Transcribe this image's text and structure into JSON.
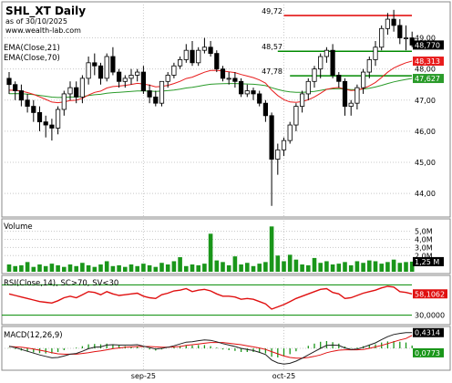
{
  "header": {
    "title": "SHL_XT Daily",
    "asof": "as of 30/10/2025",
    "website": "www.wealth-lab.com",
    "ema21_label": "EMA(Close,21)",
    "ema70_label": "EMA(Close,70)"
  },
  "colors": {
    "up_candle": "#ffffff",
    "down_candle": "#000000",
    "ema21": "#e81d1d",
    "ema70": "#2a9b2a",
    "resistance": "#e00000",
    "support": "#008a00",
    "volume": "#1a961a",
    "rsi": "#e01010",
    "macd_line": "#202020",
    "macd_signal": "#e01010",
    "macd_hist": "#1a961a",
    "grid": "#c8c8c8"
  },
  "chart_data": [
    {
      "type": "candlestick",
      "panel": "price",
      "ylim": [
        43.3,
        50.1
      ],
      "yticks": [
        "49,00",
        "48,00",
        "47,00",
        "46,00",
        "45,00",
        "44,00"
      ],
      "xtick_labels": [
        "sep-25",
        "oct-25"
      ],
      "xtick_index": [
        22,
        45
      ],
      "levels": [
        {
          "label": "49,72",
          "value": 49.72,
          "kind": "resistance"
        },
        {
          "label": "48,57",
          "value": 48.57,
          "kind": "support"
        },
        {
          "label": "47,78",
          "value": 47.78,
          "kind": "support"
        }
      ],
      "last_price_label": "48,770",
      "ema21_last_label": "48,313",
      "ema70_last_label": "47,627",
      "open": [
        47.7,
        47.5,
        47.3,
        47.0,
        46.8,
        46.6,
        46.3,
        46.2,
        46.1,
        46.7,
        47.2,
        47.4,
        47.1,
        47.7,
        48.2,
        48.1,
        47.7,
        48.4,
        47.9,
        47.6,
        47.7,
        47.8,
        47.9,
        47.3,
        47.1,
        46.9,
        47.6,
        47.8,
        48.1,
        48.3,
        48.6,
        48.2,
        48.6,
        48.7,
        48.5,
        48.0,
        47.7,
        47.7,
        47.6,
        47.2,
        47.3,
        47.2,
        46.9,
        46.5,
        45.1,
        45.4,
        45.7,
        46.2,
        46.8,
        47.2,
        47.6,
        48.0,
        48.4,
        48.6,
        47.8,
        47.6,
        46.8,
        46.9,
        47.4,
        47.9,
        48.3,
        48.7,
        49.3,
        49.6,
        49.4,
        49.0,
        49.0
      ],
      "high": [
        47.9,
        47.6,
        47.5,
        47.2,
        47.0,
        46.8,
        46.5,
        46.4,
        46.8,
        47.3,
        47.6,
        47.6,
        47.8,
        48.4,
        48.5,
        48.2,
        48.5,
        48.7,
        48.0,
        47.8,
        48.0,
        48.0,
        48.1,
        47.5,
        47.3,
        47.6,
        47.9,
        48.2,
        48.4,
        48.8,
        48.9,
        48.7,
        49.0,
        48.9,
        48.6,
        48.1,
        47.9,
        47.9,
        47.7,
        47.5,
        47.4,
        47.3,
        47.0,
        46.6,
        45.6,
        45.8,
        46.3,
        46.9,
        47.3,
        47.7,
        48.1,
        48.5,
        48.7,
        48.8,
        47.9,
        47.7,
        47.0,
        47.5,
        48.0,
        48.4,
        48.9,
        49.4,
        49.8,
        49.9,
        49.6,
        49.4,
        49.2
      ],
      "low": [
        47.2,
        47.0,
        46.8,
        46.6,
        46.3,
        46.0,
        45.8,
        45.7,
        45.9,
        46.5,
        47.0,
        46.9,
        46.9,
        47.5,
        47.8,
        47.5,
        47.6,
        47.8,
        47.4,
        47.4,
        47.5,
        47.6,
        47.2,
        46.9,
        46.8,
        46.8,
        47.4,
        47.7,
        48.0,
        48.2,
        48.1,
        48.1,
        48.5,
        48.4,
        47.9,
        47.6,
        47.5,
        47.4,
        47.1,
        47.1,
        47.0,
        46.8,
        46.3,
        43.6,
        44.6,
        45.2,
        45.6,
        46.0,
        46.6,
        47.0,
        47.4,
        47.7,
        48.2,
        47.7,
        47.4,
        46.5,
        46.5,
        46.7,
        47.2,
        47.7,
        48.1,
        48.6,
        49.1,
        49.2,
        48.8,
        48.6,
        48.7
      ],
      "close": [
        47.5,
        47.3,
        47.0,
        46.8,
        46.6,
        46.3,
        46.2,
        46.1,
        46.7,
        47.2,
        47.4,
        47.1,
        47.7,
        48.2,
        48.1,
        47.7,
        48.4,
        47.9,
        47.6,
        47.7,
        47.8,
        47.9,
        47.3,
        47.1,
        46.9,
        47.6,
        47.8,
        48.1,
        48.3,
        48.6,
        48.2,
        48.6,
        48.7,
        48.5,
        48.0,
        47.7,
        47.7,
        47.6,
        47.2,
        47.3,
        47.2,
        46.9,
        46.5,
        45.1,
        45.4,
        45.7,
        46.2,
        46.8,
        47.2,
        47.6,
        48.0,
        48.4,
        48.6,
        47.8,
        47.6,
        46.8,
        46.9,
        47.4,
        47.9,
        48.3,
        48.7,
        49.3,
        49.6,
        49.4,
        49.0,
        49.0,
        48.77
      ]
    },
    {
      "type": "bar",
      "panel": "volume",
      "title": "Volume",
      "ylim": [
        0,
        6.2
      ],
      "yticks": [
        "5,0M",
        "4,0M",
        "3,0M",
        "2,0M"
      ],
      "last_label": "1,25 M",
      "values": [
        0.9,
        0.7,
        0.8,
        1.2,
        0.6,
        0.9,
        0.7,
        1.0,
        0.8,
        0.6,
        0.9,
        0.7,
        1.1,
        0.8,
        0.6,
        0.9,
        1.3,
        0.7,
        0.8,
        0.6,
        0.9,
        0.7,
        1.0,
        0.8,
        0.6,
        1.1,
        0.9,
        1.3,
        1.8,
        0.7,
        0.9,
        0.8,
        1.0,
        4.7,
        1.4,
        1.2,
        0.8,
        1.9,
        0.9,
        1.1,
        0.7,
        1.0,
        1.2,
        5.6,
        2.0,
        1.3,
        2.1,
        1.5,
        0.9,
        0.8,
        1.7,
        1.1,
        1.3,
        0.9,
        1.0,
        1.2,
        0.8,
        1.3,
        1.1,
        1.4,
        1.3,
        1.0,
        1.2,
        1.5,
        1.1,
        1.2,
        1.25
      ]
    },
    {
      "type": "line",
      "panel": "rsi",
      "title": "RSI(Close,14), SC>70, SV<30",
      "ylim": [
        20,
        80
      ],
      "yticks": [
        "30,0000"
      ],
      "upper_level": 70,
      "lower_level": 30,
      "last_label": "58,1062",
      "values": [
        58,
        56,
        54,
        52,
        50,
        48,
        47,
        46,
        49,
        53,
        55,
        53,
        57,
        61,
        60,
        57,
        61,
        58,
        56,
        57,
        58,
        59,
        55,
        53,
        52,
        57,
        59,
        62,
        63,
        65,
        61,
        63,
        64,
        62,
        58,
        55,
        55,
        54,
        51,
        52,
        51,
        48,
        45,
        38,
        41,
        44,
        48,
        52,
        55,
        58,
        61,
        64,
        65,
        60,
        58,
        52,
        53,
        56,
        59,
        61,
        63,
        66,
        68,
        67,
        61,
        60,
        58.1
      ]
    },
    {
      "type": "line",
      "panel": "macd",
      "title": "MACD(12,26,9)",
      "ylim": [
        -0.55,
        0.55
      ],
      "last_label": "0,4314",
      "hist_last_label": "0,0773",
      "macd": [
        0.06,
        0.02,
        -0.03,
        -0.08,
        -0.13,
        -0.18,
        -0.22,
        -0.26,
        -0.25,
        -0.21,
        -0.16,
        -0.14,
        -0.08,
        -0.01,
        0.03,
        0.04,
        0.09,
        0.1,
        0.09,
        0.09,
        0.09,
        0.1,
        0.06,
        0.02,
        -0.02,
        0.0,
        0.03,
        0.07,
        0.12,
        0.17,
        0.18,
        0.21,
        0.23,
        0.22,
        0.18,
        0.13,
        0.09,
        0.05,
        0.0,
        -0.03,
        -0.06,
        -0.11,
        -0.17,
        -0.32,
        -0.4,
        -0.43,
        -0.41,
        -0.35,
        -0.27,
        -0.18,
        -0.09,
        0.0,
        0.08,
        0.09,
        0.08,
        0.01,
        -0.03,
        -0.02,
        0.03,
        0.09,
        0.15,
        0.24,
        0.32,
        0.38,
        0.41,
        0.43,
        0.4314
      ],
      "signal": [
        0.05,
        0.04,
        0.03,
        0.01,
        -0.02,
        -0.05,
        -0.08,
        -0.12,
        -0.15,
        -0.16,
        -0.16,
        -0.16,
        -0.14,
        -0.12,
        -0.09,
        -0.07,
        -0.04,
        -0.01,
        0.01,
        0.03,
        0.04,
        0.05,
        0.05,
        0.05,
        0.04,
        0.03,
        0.03,
        0.04,
        0.05,
        0.08,
        0.1,
        0.12,
        0.14,
        0.16,
        0.16,
        0.16,
        0.14,
        0.12,
        0.1,
        0.07,
        0.04,
        0.01,
        -0.03,
        -0.09,
        -0.15,
        -0.21,
        -0.25,
        -0.27,
        -0.27,
        -0.25,
        -0.22,
        -0.18,
        -0.12,
        -0.08,
        -0.05,
        -0.04,
        -0.04,
        -0.04,
        -0.03,
        0.0,
        0.04,
        0.08,
        0.13,
        0.18,
        0.23,
        0.27,
        0.3541
      ]
    }
  ]
}
